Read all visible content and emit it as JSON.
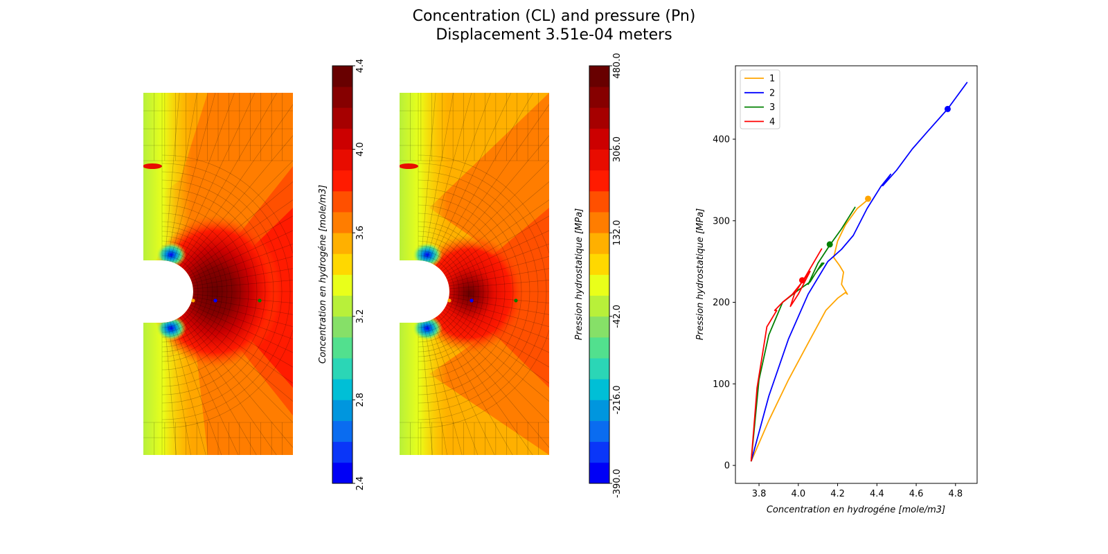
{
  "title": {
    "line1": "Concentration (CL) and pressure (Pn)",
    "line2": "Displacement 3.51e-04 meters"
  },
  "colors": {
    "jet": [
      "#0000f6",
      "#0a36f8",
      "#0a6cf0",
      "#0096de",
      "#00bfd6",
      "#2bd6b6",
      "#52e08e",
      "#86e068",
      "#b8f03a",
      "#e9ff1a",
      "#ffd800",
      "#ffb000",
      "#ff7d00",
      "#ff5000",
      "#ff1b00",
      "#e80c00",
      "#cc0000",
      "#a60000",
      "#860000",
      "#680000"
    ],
    "series": {
      "1": "#ffa500",
      "2": "#0000ff",
      "3": "#008000",
      "4": "#ff0000"
    }
  },
  "contour_plots": [
    {
      "colorbar": {
        "label": "Concentration en hydrogéne [mole/m3]",
        "ticks": [
          "2.4",
          "2.8",
          "3.2",
          "3.6",
          "4.0",
          "4.4"
        ],
        "tick_values": [
          2.4,
          2.8,
          3.2,
          3.6,
          4.0,
          4.4
        ],
        "range": [
          2.4,
          4.4
        ],
        "levels": 20
      }
    },
    {
      "colorbar": {
        "label": "Pression hydrostatique [MPa]",
        "ticks": [
          "-390.0",
          "-216.0",
          "-42.0",
          "132.0",
          "306.0",
          "480.0"
        ],
        "tick_values": [
          -390,
          -216,
          -42,
          132,
          306,
          480
        ],
        "range": [
          -390,
          480
        ],
        "levels": 20
      }
    }
  ],
  "chart_data": {
    "type": "line",
    "title": "",
    "xlabel": "Concentration en hydrogéne [mole/m3]",
    "ylabel": "Pression hydrostatique [MPa]",
    "xlim": [
      3.68,
      4.91
    ],
    "ylim": [
      -22,
      490
    ],
    "xticks": [
      "3.8",
      "4.0",
      "4.2",
      "4.4",
      "4.6",
      "4.8"
    ],
    "xtick_values": [
      3.8,
      4.0,
      4.2,
      4.4,
      4.6,
      4.8
    ],
    "yticks": [
      "0",
      "100",
      "200",
      "300",
      "400"
    ],
    "ytick_values": [
      0,
      100,
      200,
      300,
      400
    ],
    "grid": false,
    "legend_position": "top-left",
    "series": [
      {
        "name": "1",
        "x": [
          3.76,
          3.85,
          3.95,
          4.05,
          4.14,
          4.2,
          4.24,
          4.25,
          4.22,
          4.23,
          4.21,
          4.18,
          4.2,
          4.24,
          4.3,
          4.36
        ],
        "y": [
          5,
          55,
          105,
          150,
          190,
          205,
          212,
          210,
          222,
          237,
          245,
          255,
          275,
          295,
          315,
          327
        ],
        "marker": {
          "x": 4.355,
          "y": 327
        }
      },
      {
        "name": "2",
        "x": [
          3.76,
          3.85,
          3.95,
          4.05,
          4.15,
          4.22,
          4.28,
          4.35,
          4.42,
          4.47,
          4.43,
          4.5,
          4.58,
          4.66,
          4.76,
          4.86
        ],
        "y": [
          5,
          85,
          155,
          210,
          250,
          265,
          282,
          315,
          342,
          357,
          343,
          362,
          388,
          410,
          437,
          470
        ],
        "marker": {
          "x": 4.76,
          "y": 437
        }
      },
      {
        "name": "3",
        "x": [
          3.76,
          3.8,
          3.85,
          3.92,
          4.0,
          4.06,
          4.12,
          4.13,
          4.1,
          4.05,
          4.1,
          4.16,
          4.22,
          4.29
        ],
        "y": [
          5,
          105,
          160,
          200,
          215,
          225,
          248,
          248,
          240,
          222,
          248,
          270,
          290,
          317
        ],
        "marker": {
          "x": 4.16,
          "y": 271
        }
      },
      {
        "name": "4",
        "x": [
          3.76,
          3.79,
          3.84,
          3.86,
          3.89,
          3.88,
          3.92,
          3.97,
          4.02,
          4.06,
          4.0,
          3.96,
          3.98,
          4.04,
          4.12
        ],
        "y": [
          5,
          95,
          170,
          178,
          190,
          190,
          200,
          210,
          225,
          238,
          210,
          195,
          210,
          233,
          266
        ],
        "marker": {
          "x": 4.02,
          "y": 227
        }
      }
    ]
  }
}
